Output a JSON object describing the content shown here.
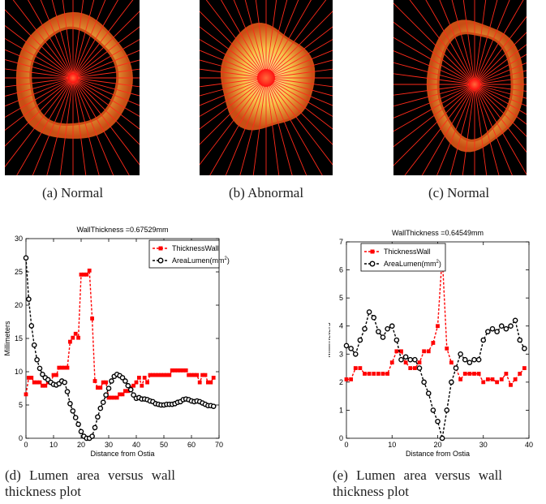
{
  "images": [
    {
      "caption": "(a) Normal"
    },
    {
      "caption": "(b) Abnormal"
    },
    {
      "caption": "(c) Normal"
    }
  ],
  "colors": {
    "ray": "#ff2a1a",
    "center": "#ff1010",
    "wall_outer": "#ffefb0",
    "wall_mid": "#f6c24a",
    "wall_edge": "#c84e14",
    "thickness_series": "#ff0000",
    "lumen_series": "#000000"
  },
  "plots": [
    {
      "caption_line1": "(d) Lumen area versus wall",
      "caption_line2": "thickness plot",
      "ytick_labels": [
        "0",
        "5",
        "10",
        "15",
        "20",
        "25",
        "30"
      ],
      "xtick_labels": [
        "0",
        "10",
        "20",
        "30",
        "40",
        "50",
        "60",
        "70"
      ]
    },
    {
      "caption_line1": "(e) Lumen area versus wall",
      "caption_line2": "thickness plot",
      "ytick_labels": [
        "0",
        "1",
        "2",
        "3",
        "4",
        "5",
        "6",
        "7"
      ],
      "xtick_labels": [
        "0",
        "10",
        "20",
        "30",
        "40"
      ]
    }
  ],
  "chart_data": [
    {
      "type": "line",
      "title": "WallThickness =0.67529mm",
      "xlabel": "Distance from Ostia",
      "ylabel": "Millimeters",
      "xlim": [
        0,
        70
      ],
      "ylim": [
        0,
        30
      ],
      "legend_placement": "top-right",
      "series": [
        {
          "name": "ThicknessWall",
          "color": "#ff0000",
          "marker": "square",
          "linestyle": "dashed",
          "x": [
            0,
            1,
            2,
            3,
            4,
            5,
            6,
            7,
            8,
            9,
            10,
            11,
            12,
            13,
            14,
            15,
            16,
            17,
            18,
            19,
            20,
            21,
            22,
            23,
            24,
            25,
            26,
            27,
            28,
            29,
            30,
            31,
            32,
            33,
            34,
            35,
            36,
            37,
            38,
            39,
            40,
            41,
            42,
            43,
            44,
            45,
            46,
            47,
            48,
            49,
            50,
            51,
            52,
            53,
            54,
            55,
            56,
            57,
            58,
            59,
            60,
            61,
            62,
            63,
            64,
            65,
            66,
            67,
            68
          ],
          "y": [
            6.6,
            9.1,
            9.1,
            8.4,
            8.4,
            8.4,
            7.9,
            7.9,
            8.4,
            8.4,
            9.5,
            9.5,
            10.6,
            10.6,
            10.6,
            10.6,
            14.5,
            15.1,
            15.7,
            15.1,
            24.6,
            24.6,
            24.6,
            25.2,
            18.0,
            8.6,
            7.6,
            7.6,
            8.4,
            8.4,
            6.1,
            6.1,
            6.1,
            6.1,
            6.6,
            6.6,
            7.1,
            7.1,
            7.6,
            7.9,
            8.4,
            9.1,
            7.9,
            9.1,
            8.4,
            9.5,
            9.5,
            9.5,
            9.5,
            9.5,
            9.5,
            9.5,
            9.5,
            10.2,
            10.2,
            10.2,
            10.2,
            10.2,
            10.2,
            9.5,
            9.5,
            9.5,
            9.5,
            8.4,
            9.5,
            9.5,
            8.4,
            8.4,
            9.1
          ]
        },
        {
          "name": "AreaLumen(mm²)",
          "color": "#000000",
          "marker": "circle",
          "linestyle": "dashed",
          "x": [
            0,
            1,
            2,
            3,
            4,
            5,
            6,
            7,
            8,
            9,
            10,
            11,
            12,
            13,
            14,
            15,
            16,
            17,
            18,
            19,
            20,
            21,
            22,
            23,
            24,
            25,
            26,
            27,
            28,
            29,
            30,
            31,
            32,
            33,
            34,
            35,
            36,
            37,
            38,
            39,
            40,
            41,
            42,
            43,
            44,
            45,
            46,
            47,
            48,
            49,
            50,
            51,
            52,
            53,
            54,
            55,
            56,
            57,
            58,
            59,
            60,
            61,
            62,
            63,
            64,
            65,
            66,
            67,
            68
          ],
          "y": [
            27.1,
            20.9,
            16.9,
            14.0,
            11.8,
            10.5,
            9.6,
            9.1,
            8.8,
            8.4,
            8.1,
            8.0,
            8.2,
            8.6,
            8.4,
            7.0,
            5.2,
            4.1,
            3.1,
            2.1,
            1.0,
            0.3,
            0.0,
            0.0,
            0.3,
            1.6,
            3.2,
            4.5,
            5.4,
            6.5,
            7.5,
            8.6,
            9.3,
            9.6,
            9.4,
            9.1,
            8.6,
            7.9,
            7.3,
            6.5,
            6.0,
            6.1,
            5.9,
            5.9,
            5.8,
            5.6,
            5.5,
            5.2,
            5.1,
            5.0,
            5.0,
            5.1,
            5.1,
            5.1,
            5.2,
            5.4,
            5.5,
            5.8,
            5.9,
            5.8,
            5.6,
            5.5,
            5.6,
            5.5,
            5.3,
            5.1,
            4.9,
            4.9,
            4.8
          ]
        }
      ]
    },
    {
      "type": "line",
      "title": "WallThickness =0.64549mm",
      "xlabel": "Distance from Ostia",
      "ylabel": "Millimeters",
      "xlim": [
        0,
        40
      ],
      "ylim": [
        0,
        7
      ],
      "legend_placement": "top-left",
      "series": [
        {
          "name": "ThicknessWall",
          "color": "#ff0000",
          "marker": "square",
          "linestyle": "dashed",
          "x": [
            0,
            1,
            2,
            3,
            4,
            5,
            6,
            7,
            8,
            9,
            10,
            11,
            12,
            13,
            14,
            15,
            16,
            17,
            18,
            19,
            20,
            21,
            22,
            23,
            24,
            25,
            26,
            27,
            28,
            29,
            30,
            31,
            32,
            33,
            34,
            35,
            36,
            37,
            38,
            39
          ],
          "y": [
            2.1,
            2.1,
            2.5,
            2.5,
            2.3,
            2.3,
            2.3,
            2.3,
            2.3,
            2.3,
            2.7,
            3.1,
            3.1,
            2.7,
            2.5,
            2.5,
            2.7,
            3.1,
            3.1,
            3.4,
            4.0,
            6.5,
            3.2,
            2.7,
            2.5,
            2.1,
            2.3,
            2.3,
            2.3,
            2.3,
            2.0,
            2.1,
            2.1,
            2.0,
            2.1,
            2.3,
            1.9,
            2.1,
            2.3,
            2.5
          ]
        },
        {
          "name": "AreaLumen(mm²)",
          "color": "#000000",
          "marker": "circle",
          "linestyle": "dashed",
          "x": [
            0,
            1,
            2,
            3,
            4,
            5,
            6,
            7,
            8,
            9,
            10,
            11,
            12,
            13,
            14,
            15,
            16,
            17,
            18,
            19,
            20,
            21,
            22,
            23,
            24,
            25,
            26,
            27,
            28,
            29,
            30,
            31,
            32,
            33,
            34,
            35,
            36,
            37,
            38,
            39
          ],
          "y": [
            3.3,
            3.2,
            3.0,
            3.5,
            3.9,
            4.5,
            4.3,
            3.8,
            3.6,
            3.9,
            4.0,
            3.5,
            2.8,
            2.9,
            2.8,
            2.8,
            2.5,
            2.0,
            1.6,
            1.0,
            0.6,
            0.0,
            1.0,
            2.0,
            2.5,
            3.0,
            2.8,
            2.7,
            2.8,
            2.8,
            3.5,
            3.8,
            3.9,
            3.8,
            4.0,
            3.9,
            4.0,
            4.2,
            3.5,
            3.2
          ]
        }
      ]
    }
  ]
}
